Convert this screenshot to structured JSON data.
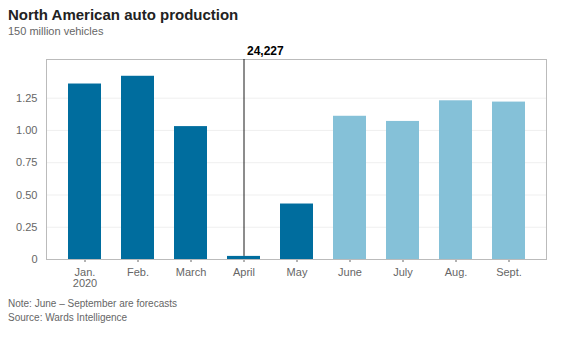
{
  "chart_data": {
    "type": "bar",
    "title": "North American auto production",
    "ylabel": "150 million vehicles",
    "categories": [
      "Jan.\n2020",
      "Feb.",
      "March",
      "April",
      "May",
      "June",
      "July",
      "Aug.",
      "Sept."
    ],
    "values": [
      1.36,
      1.42,
      1.03,
      0.024,
      0.43,
      1.11,
      1.07,
      1.23,
      1.22
    ],
    "colors": [
      "#006d9e",
      "#006d9e",
      "#006d9e",
      "#006d9e",
      "#006d9e",
      "#85c1d8",
      "#85c1d8",
      "#85c1d8",
      "#85c1d8"
    ],
    "ylim": [
      0,
      1.55
    ],
    "yticks": [
      0,
      0.25,
      {
        "value": 0.5,
        "label": "0.50"
      },
      0.75,
      {
        "value": 1.0,
        "label": "1.00"
      },
      1.25
    ],
    "grid": true,
    "annotations": [
      {
        "text": "24,227",
        "x": "April"
      }
    ],
    "notes": [
      "Note: June – September are forecasts",
      "Source: Wards Intelligence"
    ]
  }
}
